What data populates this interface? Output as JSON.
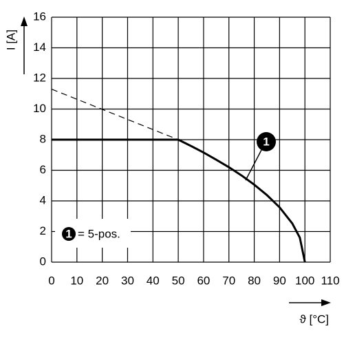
{
  "chart_data": {
    "type": "line",
    "x_label": "ϑ [°C]",
    "y_label": "I [A]",
    "xlim": [
      0,
      110
    ],
    "xticks": [
      0,
      10,
      20,
      30,
      40,
      50,
      60,
      70,
      80,
      90,
      100,
      110
    ],
    "ylim": [
      0,
      16
    ],
    "yticks": [
      0,
      2,
      4,
      6,
      8,
      10,
      12,
      14,
      16
    ],
    "grid": true,
    "series": [
      {
        "color": "#000000",
        "style": "solid",
        "x": [
          0,
          50,
          55,
          60,
          65,
          70,
          75,
          80,
          85,
          90,
          95,
          98,
          100
        ],
        "values": [
          8,
          8,
          7.59,
          7.16,
          6.69,
          6.2,
          5.66,
          5.06,
          4.38,
          3.58,
          2.53,
          1.6,
          0
        ]
      },
      {
        "color": "#000000",
        "style": "dashed",
        "x": [
          0,
          50
        ],
        "values": [
          11.3,
          8
        ]
      }
    ],
    "annotation": "1",
    "legend": {
      "marker": "1",
      "text": "= 5-pos."
    }
  }
}
